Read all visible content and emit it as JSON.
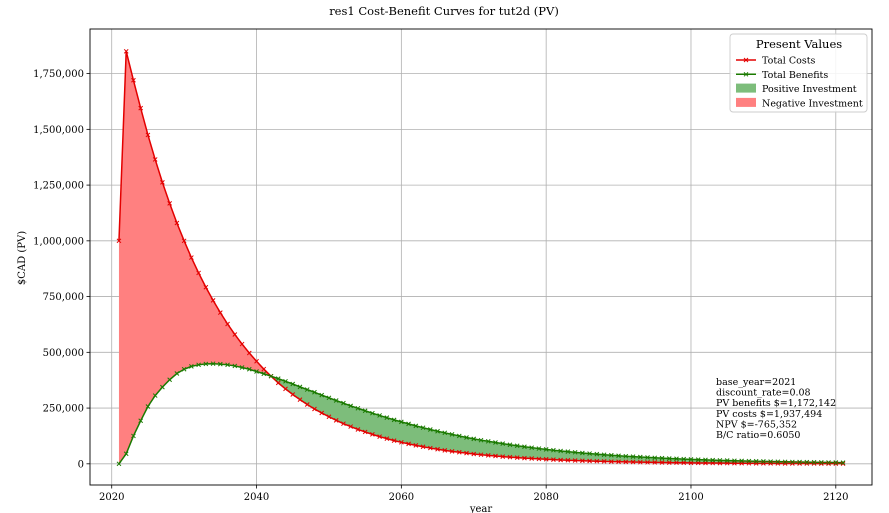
{
  "chart_data": {
    "type": "line",
    "title": "res1 Cost-Benefit Curves for tut2d (PV)",
    "xlabel": "year",
    "ylabel": "$CAD (PV)",
    "xlim": [
      2017,
      2125
    ],
    "ylim": [
      -95000,
      1950000
    ],
    "grid": true,
    "legend_placement": "top-right",
    "x_ticks": [
      2020,
      2040,
      2060,
      2080,
      2100,
      2120
    ],
    "x_tick_labels": [
      "2020",
      "2040",
      "2060",
      "2080",
      "2100",
      "2120"
    ],
    "y_ticks": [
      0,
      250000,
      500000,
      750000,
      1000000,
      1250000,
      1500000,
      1750000
    ],
    "y_tick_labels": [
      "0",
      "250,000",
      "500,000",
      "750,000",
      "1,000,000",
      "1,250,000",
      "1,500,000",
      "1,750,000"
    ],
    "legend": {
      "title": "Present Values",
      "entries": [
        {
          "label": "Total Costs",
          "kind": "line",
          "color": "#e30000"
        },
        {
          "label": "Total Benefits",
          "kind": "line",
          "color": "#1a7a00"
        },
        {
          "label": "Positive Investment",
          "kind": "patch",
          "color": "#7dbd7b"
        },
        {
          "label": "Negative Investment",
          "kind": "patch",
          "color": "#ff8080"
        }
      ]
    },
    "annotation": [
      "base_year=2021",
      "discount_rate=0.08",
      "PV benefits $=1,172,142",
      "PV costs $=1,937,494",
      "NPV $=-765,352",
      "B/C ratio=0.6050"
    ],
    "series": [
      {
        "name": "Total Costs",
        "color": "#e30000",
        "marker": "x",
        "x_start": 2021,
        "x_end": 2121,
        "values": [
          1000000,
          1850000,
          1720000,
          1595000,
          1475000,
          1365000,
          1262000,
          1168000,
          1080000,
          1000000,
          925000,
          856000,
          792000,
          733000,
          678000,
          627000,
          580000,
          537000,
          497000,
          460000,
          425000,
          393000,
          363000,
          336000,
          311000,
          288000,
          266000,
          246000,
          228000,
          211000,
          195000,
          180000,
          167000,
          154000,
          143000,
          132000,
          122000,
          113000,
          104000,
          96500,
          89300,
          82600,
          76400,
          70600,
          65300,
          60400,
          55900,
          51700,
          47800,
          44200,
          40900,
          37800,
          35000,
          32400,
          29900,
          27700,
          25600,
          23700,
          21900,
          20300,
          18700,
          17300,
          16000,
          14800,
          13700,
          12700,
          11700,
          10900,
          10000,
          9300,
          8600,
          8000,
          7400,
          6800,
          6300,
          5800,
          5400,
          5000,
          4600,
          4300,
          3900,
          3600,
          3400,
          3100,
          2900,
          2700,
          2500,
          2300,
          2100,
          2000,
          1800,
          1700,
          1600,
          1400,
          1300,
          1200,
          1100,
          1000,
          950,
          880,
          810
        ]
      },
      {
        "name": "Total Benefits",
        "color": "#1a7a00",
        "marker": "x",
        "x_start": 2021,
        "x_end": 2121,
        "values": [
          0,
          45000,
          125000,
          193000,
          257000,
          306000,
          344000,
          377000,
          405000,
          424000,
          437000,
          444000,
          448000,
          449000,
          447000,
          444000,
          439000,
          432000,
          424000,
          414000,
          404000,
          393000,
          382000,
          370000,
          358000,
          345000,
          333000,
          321000,
          308000,
          296000,
          284000,
          272000,
          260000,
          249000,
          238000,
          227000,
          217000,
          207000,
          197000,
          188000,
          179000,
          170000,
          162000,
          154000,
          146000,
          139000,
          132000,
          125000,
          118000,
          112000,
          106000,
          101000,
          95500,
          90400,
          85600,
          81000,
          76600,
          72400,
          68400,
          64700,
          61100,
          57700,
          54500,
          51500,
          48600,
          45900,
          43300,
          40800,
          38500,
          36300,
          34200,
          32300,
          30400,
          28700,
          27000,
          25500,
          24000,
          22600,
          21300,
          20000,
          18900,
          17800,
          16700,
          15700,
          14800,
          13900,
          13100,
          12300,
          11600,
          10900,
          10200,
          9600,
          9000,
          8500,
          8000,
          7500,
          7000,
          6600,
          6200,
          5800,
          5500
        ]
      }
    ]
  }
}
